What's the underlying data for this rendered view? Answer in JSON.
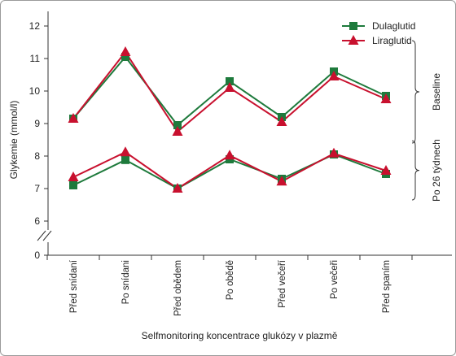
{
  "chart_data": {
    "type": "line",
    "xlabel": "Selfmonitoring koncentrace glukózy v plazmě",
    "ylabel": "Glykemie (mmol/l)",
    "categories": [
      "Před snídaní",
      "Po snídani",
      "Před obědem",
      "Po obědě",
      "Před večeří",
      "Po večeři",
      "Před spaním"
    ],
    "y_ticks": [
      "12",
      "11",
      "10",
      "9",
      "8",
      "7",
      "6",
      "0"
    ],
    "ylim": [
      6,
      12
    ],
    "y_axis_break": true,
    "grid": false,
    "legend_position": "top-right",
    "legend": [
      {
        "name": "Dulaglutid",
        "marker": "square",
        "color": "#1e7a3c"
      },
      {
        "name": "Liraglutid",
        "marker": "triangle",
        "color": "#c8102e"
      }
    ],
    "groups": [
      {
        "label": "Baseline",
        "series": [
          {
            "name": "Dulaglutid",
            "values": [
              9.15,
              11.05,
              8.95,
              10.3,
              9.2,
              10.6,
              9.85
            ]
          },
          {
            "name": "Liraglutid",
            "values": [
              9.15,
              11.2,
              8.75,
              10.1,
              9.05,
              10.45,
              9.75
            ]
          }
        ]
      },
      {
        "label": "Po 26 týdnech",
        "series": [
          {
            "name": "Dulaglutid",
            "values": [
              7.1,
              7.88,
              7.0,
              7.9,
              7.3,
              8.05,
              7.45
            ]
          },
          {
            "name": "Liraglutid",
            "values": [
              7.35,
              8.12,
              7.0,
              8.02,
              7.22,
              8.08,
              7.55
            ]
          }
        ]
      }
    ]
  }
}
